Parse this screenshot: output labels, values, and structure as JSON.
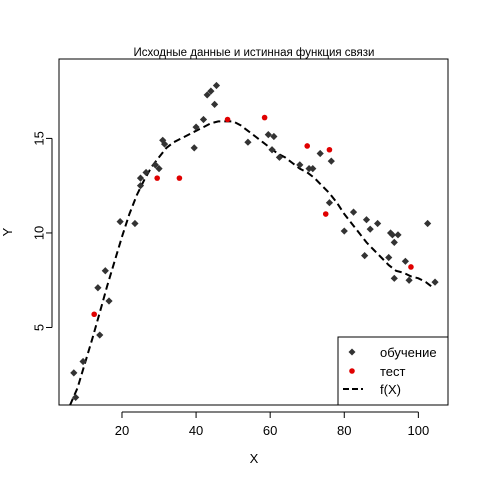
{
  "chart_data": {
    "type": "scatter",
    "title": "Исходные данные и истинная функция связи",
    "xlabel": "X",
    "ylabel": "Y",
    "xlim": [
      3,
      108
    ],
    "ylim": [
      0.9,
      19.2
    ],
    "x_ticks": [
      20,
      40,
      60,
      80,
      100
    ],
    "y_ticks": [
      5,
      10,
      15
    ],
    "legend_position": "bottom-right",
    "series": [
      {
        "name": "обучение",
        "kind": "points",
        "color": "#333333",
        "marker": "diamond",
        "points": [
          [
            7.0,
            2.6
          ],
          [
            7.5,
            1.3
          ],
          [
            9.5,
            3.2
          ],
          [
            13.5,
            7.1
          ],
          [
            14.0,
            4.6
          ],
          [
            15.5,
            8.0
          ],
          [
            16.5,
            6.4
          ],
          [
            19.5,
            10.6
          ],
          [
            23.5,
            10.5
          ],
          [
            25.0,
            12.9
          ],
          [
            25.0,
            12.5
          ],
          [
            26.5,
            13.2
          ],
          [
            29.0,
            13.6
          ],
          [
            30.0,
            13.4
          ],
          [
            31.0,
            14.9
          ],
          [
            31.5,
            14.7
          ],
          [
            39.5,
            14.5
          ],
          [
            40.0,
            15.6
          ],
          [
            42.0,
            16.0
          ],
          [
            43.0,
            17.3
          ],
          [
            44.0,
            17.5
          ],
          [
            45.0,
            16.8
          ],
          [
            45.5,
            17.8
          ],
          [
            54.0,
            14.8
          ],
          [
            59.5,
            15.2
          ],
          [
            60.5,
            14.4
          ],
          [
            61.0,
            15.1
          ],
          [
            62.5,
            14.0
          ],
          [
            68.0,
            13.6
          ],
          [
            70.5,
            13.4
          ],
          [
            71.5,
            13.4
          ],
          [
            73.5,
            14.2
          ],
          [
            76.0,
            11.6
          ],
          [
            76.5,
            13.8
          ],
          [
            80.0,
            10.1
          ],
          [
            82.5,
            11.1
          ],
          [
            85.5,
            8.8
          ],
          [
            86.0,
            10.7
          ],
          [
            87.0,
            10.2
          ],
          [
            89.0,
            10.5
          ],
          [
            92.0,
            8.7
          ],
          [
            92.5,
            10.0
          ],
          [
            93.0,
            9.9
          ],
          [
            93.5,
            9.5
          ],
          [
            94.5,
            9.9
          ],
          [
            93.5,
            7.6
          ],
          [
            96.5,
            8.5
          ],
          [
            97.5,
            7.5
          ],
          [
            102.5,
            10.5
          ],
          [
            104.5,
            7.4
          ]
        ]
      },
      {
        "name": "тест",
        "kind": "points",
        "color": "#e00000",
        "marker": "circle",
        "points": [
          [
            12.5,
            5.7
          ],
          [
            29.5,
            12.9
          ],
          [
            35.5,
            12.9
          ],
          [
            48.5,
            16.0
          ],
          [
            58.5,
            16.1
          ],
          [
            70.0,
            14.6
          ],
          [
            75.0,
            11.0
          ],
          [
            76.0,
            14.4
          ],
          [
            98.0,
            8.2
          ]
        ]
      },
      {
        "name": "f(X)",
        "kind": "line",
        "color": "#000000",
        "dash": true,
        "points": [
          [
            6,
            0.9
          ],
          [
            8,
            1.8
          ],
          [
            10,
            3.1
          ],
          [
            12,
            4.4
          ],
          [
            14,
            5.8
          ],
          [
            16,
            7.2
          ],
          [
            18,
            8.5
          ],
          [
            20,
            9.8
          ],
          [
            22,
            11.0
          ],
          [
            24,
            12.0
          ],
          [
            26,
            12.8
          ],
          [
            28,
            13.5
          ],
          [
            30,
            14.0
          ],
          [
            32,
            14.5
          ],
          [
            34,
            14.8
          ],
          [
            36,
            15.0
          ],
          [
            38,
            15.2
          ],
          [
            40,
            15.4
          ],
          [
            42,
            15.6
          ],
          [
            44,
            15.8
          ],
          [
            46,
            15.9
          ],
          [
            48,
            15.9
          ],
          [
            50,
            15.9
          ],
          [
            52,
            15.7
          ],
          [
            54,
            15.4
          ],
          [
            56,
            15.1
          ],
          [
            58,
            14.8
          ],
          [
            60,
            14.5
          ],
          [
            62,
            14.2
          ],
          [
            64,
            14.0
          ],
          [
            66,
            13.7
          ],
          [
            68,
            13.4
          ],
          [
            70,
            13.2
          ],
          [
            72,
            12.9
          ],
          [
            74,
            12.5
          ],
          [
            76,
            12.1
          ],
          [
            78,
            11.6
          ],
          [
            80,
            11.0
          ],
          [
            82,
            10.5
          ],
          [
            84,
            10.0
          ],
          [
            86,
            9.5
          ],
          [
            88,
            9.1
          ],
          [
            90,
            8.7
          ],
          [
            92,
            8.3
          ],
          [
            94,
            8.0
          ],
          [
            96,
            7.9
          ],
          [
            98,
            7.7
          ],
          [
            100,
            7.6
          ],
          [
            102,
            7.4
          ],
          [
            104,
            7.1
          ]
        ]
      }
    ]
  }
}
